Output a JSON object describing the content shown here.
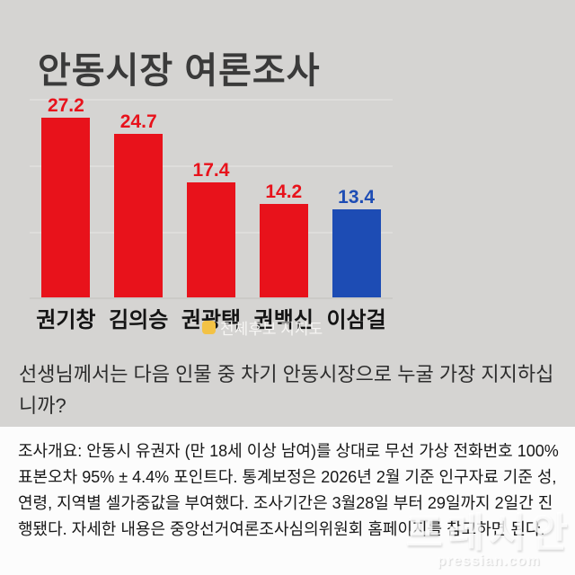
{
  "title": "안동시장 여론조사",
  "chart_data": {
    "type": "bar",
    "title": "안동시장 여론조사",
    "categories": [
      "권기창",
      "김의승",
      "권광택",
      "권백신",
      "이삼걸"
    ],
    "values": [
      27.2,
      24.7,
      17.4,
      14.2,
      13.4
    ],
    "bar_colors": [
      "#e8121b",
      "#e8121b",
      "#e8121b",
      "#e8121b",
      "#1d4cb4"
    ],
    "xlabel": "",
    "ylabel": "",
    "ylim": [
      0,
      30
    ],
    "gridlines": [
      10,
      20,
      30
    ],
    "grid": "horizontal-faint",
    "legend": {
      "label": "전체후보 지지도",
      "swatch_color": "#f3c245",
      "position": "bottom"
    }
  },
  "question": "선생님께서는 다음 인물 중 차기 안동시장으로 누굴 가장 지지하십니까?",
  "survey_overview": "조사개요:  안동시 유권자 (만 18세 이상 남여)를 상대로 무선 가상 전화번호 100% 표본오차 95% ± 4.4% 포인트다. 통계보정은 2026년 2월 기준 인구자료 기준 성, 연령, 지역별 셀가중값을 부여했다. 조사기간은 3월28일 부터 29일까지 2일간 진행됐다. 자세한 내용은 중앙선거여론조사심의위원회 홈페이지를 참고하면 된다.",
  "watermark": {
    "logo_text": "프레시안",
    "url_text": "pressian.com"
  },
  "colors": {
    "background": "#d5d4d2",
    "red_bar": "#e8121b",
    "blue_bar": "#1d4cb4",
    "legend_swatch": "#f3c245",
    "panel_background": "#fcfcfc",
    "title_text": "#3a3a3a"
  }
}
